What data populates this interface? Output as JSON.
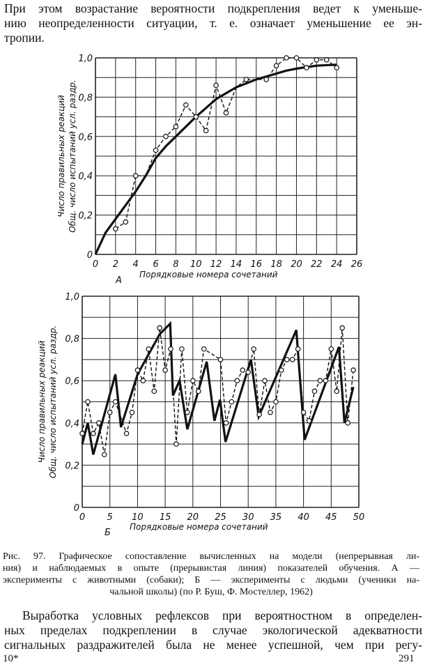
{
  "top_paragraph": [
    "При этом возрастание вероятности подкрепления ведет к уменьше-",
    "нию неопределенности ситуации, т. е. означает уменьшение ее эн-",
    "тропии."
  ],
  "caption": [
    "Рис. 97. Графическое сопоставление вычисленных  на модели  (непрерывная ли-",
    "ния) и наблюдаемых в опыте (прерывистая линия)  показателей обучения. А —",
    "эксперименты с животными (собаки); Б — эксперименты с людьми (ученики на-",
    "чальной школы)  (по Р. Буш, Ф. Мостеллер, 1962)"
  ],
  "bottom_paragraph": [
    "Выработка условных рефлексов при вероятностном в определен-",
    "ных пределах подкреплении в случае экологической адекватности",
    "сигнальных раздражителей была не менее успешной, чем при регу-"
  ],
  "footer": {
    "signature": "10*",
    "page_number": "291"
  },
  "chart_data": [
    {
      "type": "line",
      "panel_label": "А",
      "xlabel": "Порядковые номера сочетаний",
      "ylabel": [
        "Число правильных реакций",
        "Общ. число испытаний усл. раздр."
      ],
      "xlim": [
        0,
        26
      ],
      "ylim": [
        0,
        1.0
      ],
      "xticks": [
        0,
        2,
        4,
        6,
        8,
        10,
        12,
        14,
        16,
        18,
        20,
        22,
        24,
        26
      ],
      "xtick_labels": [
        "0",
        "2",
        "4",
        "6",
        "8",
        "10",
        "12",
        "14",
        "16",
        "18",
        "20",
        "22",
        "24",
        "26"
      ],
      "yticks": [
        0,
        0.2,
        0.4,
        0.6,
        0.8,
        1.0
      ],
      "ytick_labels": [
        "0",
        "0,2",
        "0,4",
        "0,6",
        "0,8",
        "1,0"
      ],
      "grid": {
        "x_step": 2,
        "y_step": 0.1
      },
      "series": [
        {
          "name": "model",
          "style": "solid",
          "x": [
            0,
            1,
            2,
            3,
            4,
            5,
            6,
            7,
            8,
            9,
            10,
            11,
            12,
            13,
            14,
            15,
            16,
            17,
            18,
            19,
            20,
            21,
            22,
            23,
            24
          ],
          "y": [
            0,
            0.11,
            0.18,
            0.25,
            0.32,
            0.4,
            0.49,
            0.55,
            0.6,
            0.65,
            0.7,
            0.745,
            0.79,
            0.82,
            0.85,
            0.87,
            0.89,
            0.905,
            0.92,
            0.935,
            0.945,
            0.953,
            0.96,
            0.963,
            0.965
          ]
        },
        {
          "name": "observed",
          "style": "dashed",
          "x": [
            2,
            3,
            4,
            5,
            6,
            7,
            8,
            9,
            10,
            11,
            12,
            13,
            14,
            15,
            16,
            17,
            18,
            19,
            20,
            21,
            22,
            23,
            24
          ],
          "y": [
            0.13,
            0.165,
            0.4,
            0.4,
            0.53,
            0.6,
            0.65,
            0.76,
            0.7,
            0.63,
            0.86,
            0.72,
            0.85,
            0.89,
            0.89,
            0.89,
            0.96,
            1.0,
            1.0,
            0.95,
            0.99,
            0.99,
            0.95
          ],
          "markers": [
            true,
            true,
            true,
            false,
            true,
            true,
            true,
            true,
            true,
            true,
            true,
            true,
            false,
            true,
            false,
            true,
            true,
            true,
            true,
            true,
            true,
            true,
            true
          ]
        }
      ]
    },
    {
      "type": "line",
      "panel_label": "Б",
      "xlabel": "Порядковые номера сочетаний",
      "ylabel": [
        "Число правильных реакций",
        "Общ. число испытаний усл. раздр."
      ],
      "xlim": [
        0,
        50
      ],
      "ylim": [
        0,
        1.0
      ],
      "xticks": [
        0,
        5,
        10,
        15,
        20,
        25,
        30,
        35,
        40,
        45,
        50
      ],
      "xtick_labels": [
        "0",
        "5",
        "10",
        "15",
        "20",
        "25",
        "30",
        "35",
        "40",
        "45",
        "50"
      ],
      "yticks": [
        0,
        0.2,
        0.4,
        0.6,
        0.8,
        1.0
      ],
      "ytick_labels": [
        "0",
        "0,2",
        "0,4",
        "0,6",
        "0,8",
        "1,0"
      ],
      "grid": {
        "x_step": 5,
        "y_step": 0.1
      },
      "series": [
        {
          "name": "model",
          "style": "solid",
          "x": [
            0,
            1,
            2,
            6,
            7,
            10,
            14,
            15.9,
            16.4,
            17.6,
            19,
            22.5,
            23.9,
            24.9,
            25.9,
            30.5,
            31.9,
            38.7,
            40.2,
            46.4,
            47.4,
            49
          ],
          "y": [
            0.3,
            0.4,
            0.25,
            0.63,
            0.38,
            0.63,
            0.82,
            0.87,
            0.53,
            0.6,
            0.37,
            0.69,
            0.41,
            0.51,
            0.31,
            0.7,
            0.43,
            0.84,
            0.32,
            0.76,
            0.4,
            0.57
          ]
        },
        {
          "name": "observed",
          "style": "dashed",
          "x": [
            0,
            1,
            2,
            3,
            4,
            5,
            6,
            8,
            9,
            10,
            11,
            12,
            13,
            14,
            15,
            16,
            17,
            18,
            19,
            20,
            21,
            22,
            25,
            26,
            27,
            28,
            29,
            30,
            31,
            32,
            33,
            34,
            35,
            36,
            37,
            38,
            39,
            40,
            41,
            42,
            43,
            44,
            45,
            46,
            47,
            48,
            49
          ],
          "y": [
            0.35,
            0.5,
            0.35,
            0.4,
            0.25,
            0.45,
            0.5,
            0.35,
            0.45,
            0.65,
            0.6,
            0.75,
            0.55,
            0.85,
            0.65,
            0.75,
            0.3,
            0.75,
            0.45,
            0.6,
            0.55,
            0.75,
            0.7,
            0.4,
            0.5,
            0.6,
            0.65,
            0.64,
            0.75,
            0.44,
            0.6,
            0.45,
            0.5,
            0.65,
            0.7,
            0.7,
            0.75,
            0.45,
            0.41,
            0.55,
            0.6,
            0.6,
            0.75,
            0.55,
            0.85,
            0.4,
            0.65
          ]
        }
      ]
    }
  ]
}
